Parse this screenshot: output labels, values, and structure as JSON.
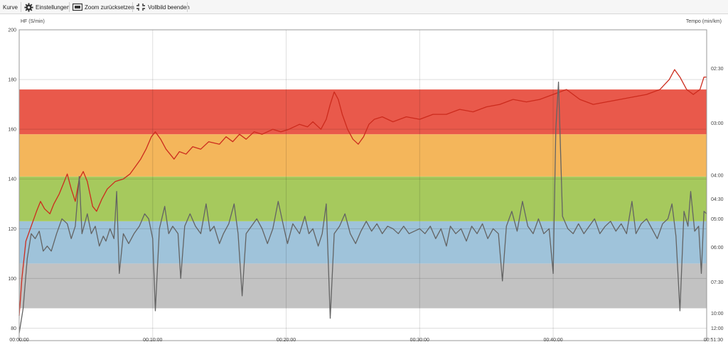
{
  "toolbar": {
    "curve_label": "Kurve",
    "settings_label": "Einstellungen",
    "zoom_reset_label": "Zoom zurücksetzen",
    "fullscreen_exit_label": "Vollbild beenden",
    "icons": [
      "gear-icon",
      "zoom-reset-icon",
      "fullscreen-exit-icon"
    ]
  },
  "chart_data": {
    "type": "line",
    "ylabel_left": "HF (S/min)",
    "ylabel_right": "Tempo (min/km)",
    "ylim": [
      75,
      200
    ],
    "y_ticks": [
      80,
      100,
      120,
      140,
      160,
      180,
      200
    ],
    "y_ticks_right": [
      "02:30",
      "03:00",
      "04:00",
      "04:30",
      "05:00",
      "06:00",
      "07:30",
      "10:00",
      "12:00"
    ],
    "y_ticks_right_hf": [
      184.5,
      162.5,
      141.5,
      132,
      124,
      112.5,
      98.5,
      86,
      80
    ],
    "x_range_min": [
      0,
      51.5
    ],
    "x_ticks": [
      "00:00:00",
      "00:10:00",
      "00:20:00",
      "00:30:00",
      "00:40:00",
      "00:51:30"
    ],
    "x_ticks_min": [
      0,
      10,
      20,
      30,
      40,
      51.5
    ],
    "grid": true,
    "zones": [
      {
        "from": 88,
        "to": 106,
        "color": "#c2c2c2"
      },
      {
        "from": 106,
        "to": 123,
        "color": "#9fc3da"
      },
      {
        "from": 123,
        "to": 141,
        "color": "#a6c95d"
      },
      {
        "from": 141,
        "to": 158,
        "color": "#f4b65b"
      },
      {
        "from": 158,
        "to": 176,
        "color": "#e9594b"
      }
    ],
    "series": [
      {
        "color": "#cc2b1d",
        "points": [
          [
            0,
            85
          ],
          [
            0.2,
            100
          ],
          [
            0.5,
            115
          ],
          [
            0.9,
            121
          ],
          [
            1.3,
            127
          ],
          [
            1.6,
            131
          ],
          [
            1.9,
            128
          ],
          [
            2.3,
            126
          ],
          [
            2.6,
            130
          ],
          [
            3,
            134
          ],
          [
            3.3,
            138
          ],
          [
            3.6,
            142
          ],
          [
            3.9,
            136
          ],
          [
            4.2,
            131
          ],
          [
            4.5,
            140
          ],
          [
            4.8,
            143
          ],
          [
            5.1,
            139
          ],
          [
            5.3,
            134
          ],
          [
            5.5,
            129
          ],
          [
            5.8,
            127
          ],
          [
            6.2,
            132
          ],
          [
            6.6,
            136
          ],
          [
            7.2,
            139
          ],
          [
            7.8,
            140
          ],
          [
            8.3,
            142
          ],
          [
            8.7,
            145
          ],
          [
            9.1,
            148
          ],
          [
            9.5,
            152
          ],
          [
            9.9,
            157
          ],
          [
            10.2,
            159
          ],
          [
            10.6,
            156
          ],
          [
            11,
            152
          ],
          [
            11.3,
            150
          ],
          [
            11.6,
            148
          ],
          [
            12,
            151
          ],
          [
            12.5,
            150
          ],
          [
            13,
            153
          ],
          [
            13.6,
            152
          ],
          [
            14.2,
            155
          ],
          [
            15,
            154
          ],
          [
            15.5,
            157
          ],
          [
            16,
            155
          ],
          [
            16.5,
            158
          ],
          [
            17,
            156
          ],
          [
            17.6,
            159
          ],
          [
            18.2,
            158
          ],
          [
            19,
            160
          ],
          [
            19.6,
            159
          ],
          [
            20.2,
            160
          ],
          [
            21,
            162
          ],
          [
            21.6,
            161
          ],
          [
            22,
            163
          ],
          [
            22.6,
            160
          ],
          [
            23,
            164
          ],
          [
            23.3,
            170
          ],
          [
            23.6,
            175
          ],
          [
            23.9,
            172
          ],
          [
            24.2,
            166
          ],
          [
            24.6,
            160
          ],
          [
            25,
            156
          ],
          [
            25.4,
            154
          ],
          [
            25.8,
            157
          ],
          [
            26.2,
            162
          ],
          [
            26.6,
            164
          ],
          [
            27.2,
            165
          ],
          [
            28,
            163
          ],
          [
            29,
            165
          ],
          [
            30,
            164
          ],
          [
            31,
            166
          ],
          [
            32,
            166
          ],
          [
            33,
            168
          ],
          [
            34,
            167
          ],
          [
            35,
            169
          ],
          [
            36,
            170
          ],
          [
            37,
            172
          ],
          [
            38,
            171
          ],
          [
            39,
            172
          ],
          [
            40,
            174
          ],
          [
            41,
            176
          ],
          [
            42,
            172
          ],
          [
            43,
            170
          ],
          [
            44,
            171
          ],
          [
            45,
            172
          ],
          [
            46,
            173
          ],
          [
            47,
            174
          ],
          [
            48,
            176
          ],
          [
            48.7,
            180
          ],
          [
            49.1,
            184
          ],
          [
            49.5,
            181
          ],
          [
            50,
            176
          ],
          [
            50.5,
            174
          ],
          [
            51,
            176
          ],
          [
            51.3,
            181
          ],
          [
            51.5,
            181
          ]
        ]
      },
      {
        "color": "#636363",
        "points": [
          [
            0,
            78
          ],
          [
            0.3,
            88
          ],
          [
            0.6,
            108
          ],
          [
            0.9,
            118
          ],
          [
            1.2,
            116
          ],
          [
            1.5,
            119
          ],
          [
            1.8,
            111
          ],
          [
            2.1,
            113
          ],
          [
            2.4,
            111
          ],
          [
            2.8,
            118
          ],
          [
            3.2,
            124
          ],
          [
            3.6,
            122
          ],
          [
            3.9,
            116
          ],
          [
            4.2,
            121
          ],
          [
            4.5,
            141
          ],
          [
            4.7,
            118
          ],
          [
            5.1,
            126
          ],
          [
            5.4,
            118
          ],
          [
            5.7,
            121
          ],
          [
            6,
            113
          ],
          [
            6.3,
            117
          ],
          [
            6.5,
            115
          ],
          [
            6.8,
            120
          ],
          [
            7.1,
            116
          ],
          [
            7.3,
            135
          ],
          [
            7.5,
            102
          ],
          [
            7.8,
            118
          ],
          [
            8.2,
            114
          ],
          [
            8.6,
            118
          ],
          [
            9,
            121
          ],
          [
            9.4,
            126
          ],
          [
            9.7,
            124
          ],
          [
            10,
            116
          ],
          [
            10.2,
            87
          ],
          [
            10.5,
            120
          ],
          [
            10.9,
            129
          ],
          [
            11.2,
            118
          ],
          [
            11.5,
            121
          ],
          [
            11.9,
            118
          ],
          [
            12.1,
            100
          ],
          [
            12.4,
            121
          ],
          [
            12.8,
            126
          ],
          [
            13.2,
            121
          ],
          [
            13.6,
            118
          ],
          [
            14,
            130
          ],
          [
            14.3,
            119
          ],
          [
            14.6,
            121
          ],
          [
            15,
            114
          ],
          [
            15.3,
            118
          ],
          [
            15.7,
            122
          ],
          [
            16.1,
            130
          ],
          [
            16.4,
            118
          ],
          [
            16.7,
            93
          ],
          [
            17,
            118
          ],
          [
            17.4,
            121
          ],
          [
            17.8,
            124
          ],
          [
            18.2,
            120
          ],
          [
            18.6,
            114
          ],
          [
            19,
            120
          ],
          [
            19.4,
            131
          ],
          [
            19.8,
            121
          ],
          [
            20.1,
            114
          ],
          [
            20.5,
            122
          ],
          [
            21,
            118
          ],
          [
            21.4,
            125
          ],
          [
            21.7,
            118
          ],
          [
            22,
            120
          ],
          [
            22.4,
            113
          ],
          [
            22.7,
            118
          ],
          [
            23,
            130
          ],
          [
            23.3,
            84
          ],
          [
            23.6,
            118
          ],
          [
            24,
            121
          ],
          [
            24.4,
            126
          ],
          [
            24.8,
            118
          ],
          [
            25.2,
            114
          ],
          [
            25.6,
            119
          ],
          [
            26,
            123
          ],
          [
            26.4,
            119
          ],
          [
            26.8,
            122
          ],
          [
            27.2,
            118
          ],
          [
            27.6,
            121
          ],
          [
            28,
            120
          ],
          [
            28.4,
            118
          ],
          [
            28.8,
            121
          ],
          [
            29.2,
            118
          ],
          [
            29.6,
            119
          ],
          [
            30,
            120
          ],
          [
            30.4,
            118
          ],
          [
            30.8,
            121
          ],
          [
            31.2,
            116
          ],
          [
            31.6,
            120
          ],
          [
            32,
            113
          ],
          [
            32.3,
            121
          ],
          [
            32.7,
            118
          ],
          [
            33.1,
            120
          ],
          [
            33.5,
            115
          ],
          [
            33.9,
            121
          ],
          [
            34.3,
            118
          ],
          [
            34.7,
            122
          ],
          [
            35.1,
            116
          ],
          [
            35.5,
            120
          ],
          [
            35.9,
            118
          ],
          [
            36.2,
            99
          ],
          [
            36.5,
            121
          ],
          [
            36.9,
            127
          ],
          [
            37.3,
            119
          ],
          [
            37.7,
            131
          ],
          [
            38.1,
            121
          ],
          [
            38.5,
            118
          ],
          [
            38.9,
            124
          ],
          [
            39.3,
            118
          ],
          [
            39.7,
            120
          ],
          [
            40,
            102
          ],
          [
            40.2,
            160
          ],
          [
            40.4,
            179
          ],
          [
            40.7,
            125
          ],
          [
            41.1,
            120
          ],
          [
            41.5,
            118
          ],
          [
            41.9,
            122
          ],
          [
            42.3,
            118
          ],
          [
            42.7,
            121
          ],
          [
            43.1,
            124
          ],
          [
            43.5,
            118
          ],
          [
            43.9,
            121
          ],
          [
            44.3,
            123
          ],
          [
            44.7,
            119
          ],
          [
            45.1,
            122
          ],
          [
            45.5,
            118
          ],
          [
            45.9,
            131
          ],
          [
            46.2,
            118
          ],
          [
            46.6,
            122
          ],
          [
            47,
            124
          ],
          [
            47.4,
            120
          ],
          [
            47.8,
            116
          ],
          [
            48.2,
            122
          ],
          [
            48.6,
            124
          ],
          [
            48.9,
            130
          ],
          [
            49.2,
            117
          ],
          [
            49.5,
            87
          ],
          [
            49.8,
            127
          ],
          [
            50.1,
            121
          ],
          [
            50.3,
            135
          ],
          [
            50.6,
            119
          ],
          [
            50.9,
            121
          ],
          [
            51.1,
            102
          ],
          [
            51.3,
            127
          ],
          [
            51.5,
            126
          ]
        ]
      }
    ]
  }
}
